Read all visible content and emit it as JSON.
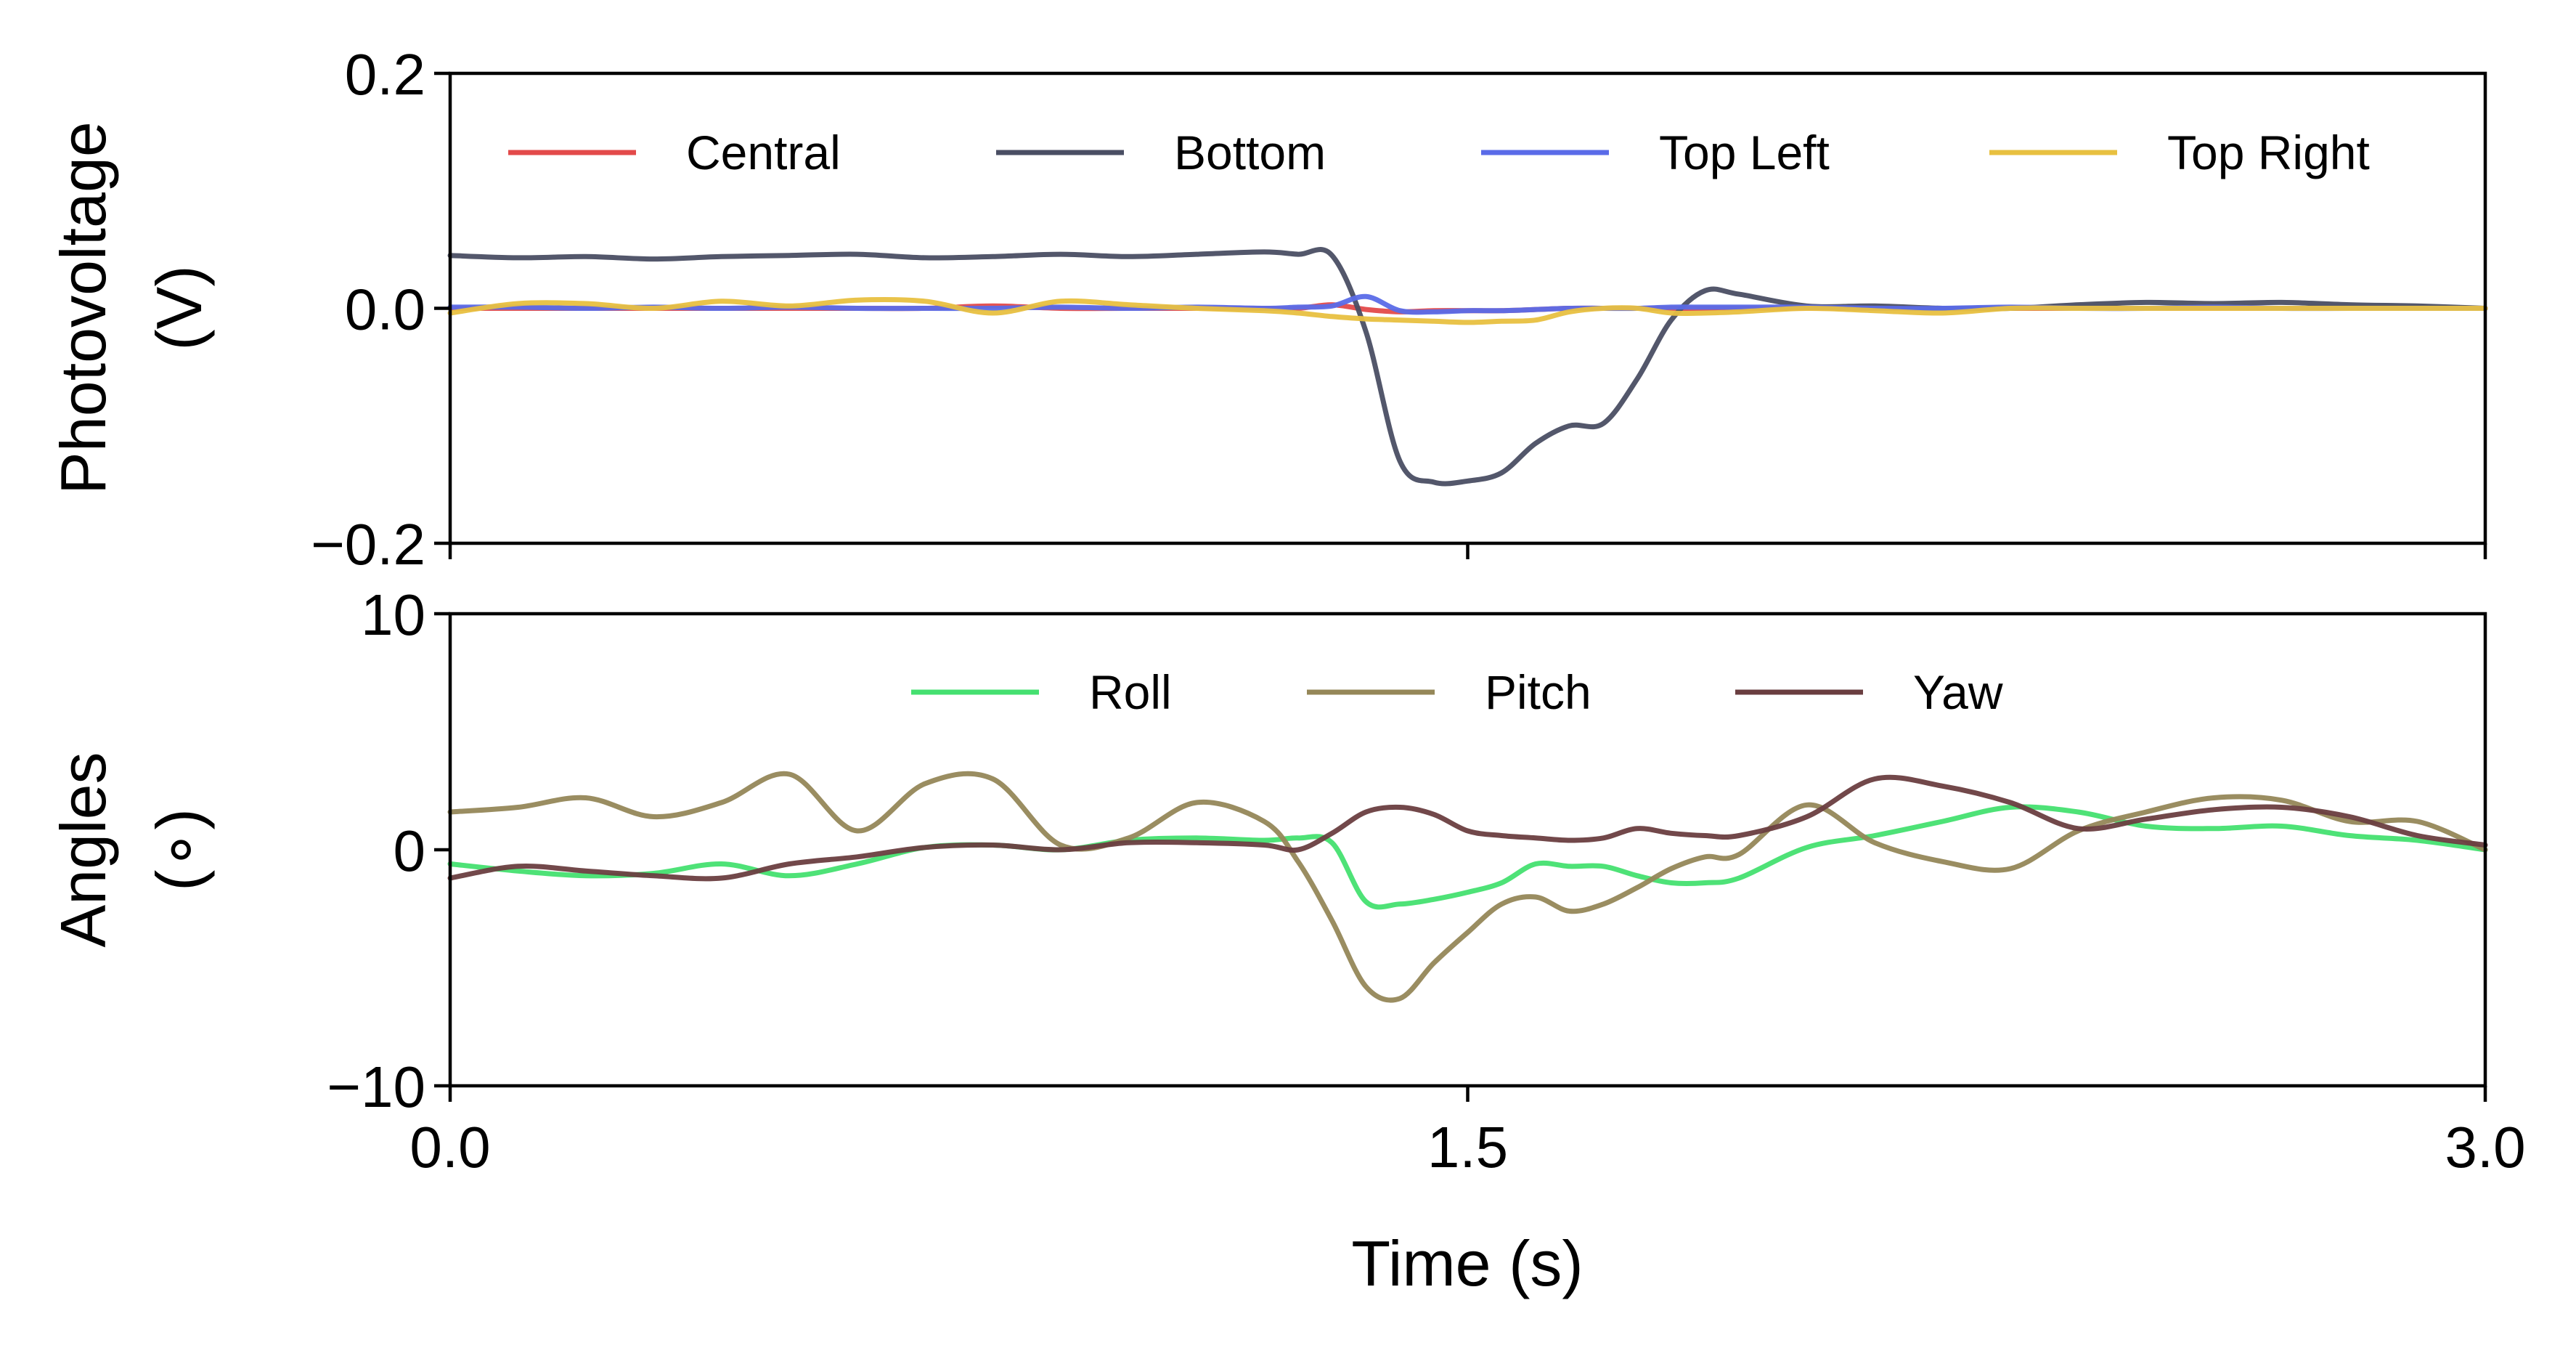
{
  "chart_data": [
    {
      "type": "line",
      "xlabel": "",
      "ylabel": [
        "Photovoltage",
        "(V)"
      ],
      "xlim": [
        0,
        3.0
      ],
      "ylim": [
        -0.2,
        0.2
      ],
      "yticks": [
        -0.2,
        0.0,
        0.2
      ],
      "ytick_labels": [
        "−0.2",
        "0.0",
        "0.2"
      ],
      "xticks": [
        0,
        1.5,
        3.0
      ],
      "grid": false,
      "legend": "top, 4 columns",
      "x": [
        0.0,
        0.1,
        0.2,
        0.3,
        0.4,
        0.5,
        0.6,
        0.7,
        0.8,
        0.9,
        1.0,
        1.1,
        1.2,
        1.25,
        1.3,
        1.35,
        1.4,
        1.45,
        1.5,
        1.55,
        1.6,
        1.65,
        1.7,
        1.75,
        1.8,
        1.85,
        1.9,
        2.0,
        2.1,
        2.2,
        2.3,
        2.4,
        2.5,
        2.6,
        2.7,
        2.8,
        2.9,
        3.0
      ],
      "series": [
        {
          "name": "Central",
          "color": "#e34a4a",
          "values": [
            0,
            0,
            0,
            0,
            0,
            0,
            0,
            0,
            0.002,
            0,
            0,
            0,
            0,
            0,
            0.003,
            -0.001,
            -0.003,
            -0.002,
            -0.002,
            -0.002,
            -0.001,
            0,
            0,
            0,
            0,
            0,
            0,
            0,
            0,
            0,
            0,
            0,
            0,
            0,
            0,
            0,
            0,
            0
          ]
        },
        {
          "name": "Bottom",
          "color": "#4a4e63",
          "values": [
            0.045,
            0.043,
            0.044,
            0.042,
            0.044,
            0.045,
            0.046,
            0.043,
            0.044,
            0.046,
            0.044,
            0.046,
            0.048,
            0.046,
            0.045,
            -0.02,
            -0.13,
            -0.148,
            -0.147,
            -0.14,
            -0.115,
            -0.1,
            -0.098,
            -0.06,
            -0.01,
            0.015,
            0.012,
            0.002,
            0.002,
            0.0,
            0.0,
            0.003,
            0.005,
            0.004,
            0.005,
            0.003,
            0.002,
            0.0
          ]
        },
        {
          "name": "Top Left",
          "color": "#5a6be8",
          "values": [
            0.001,
            0.001,
            0.0,
            0.001,
            0.0,
            0.001,
            0.0,
            0.0,
            0.0,
            0.001,
            0.0,
            0.001,
            0.0,
            0.001,
            0.002,
            0.01,
            -0.002,
            -0.003,
            -0.002,
            -0.002,
            -0.001,
            0.0,
            0.0,
            0.0,
            0.001,
            0.001,
            0.001,
            0.001,
            0.0,
            0.0,
            0.001,
            0.0,
            0.0,
            0.001,
            0.0,
            0.0,
            0.0,
            0.0
          ]
        },
        {
          "name": "Top Right",
          "color": "#e8c040",
          "values": [
            -0.004,
            0.004,
            0.004,
            0.0,
            0.006,
            0.002,
            0.007,
            0.006,
            -0.004,
            0.006,
            0.003,
            0.0,
            -0.002,
            -0.004,
            -0.007,
            -0.009,
            -0.01,
            -0.011,
            -0.012,
            -0.011,
            -0.01,
            -0.003,
            0.0,
            0.0,
            -0.004,
            -0.004,
            -0.003,
            0.0,
            -0.002,
            -0.004,
            0.0,
            0.0,
            0.0,
            0.0,
            0.0,
            0.0,
            0.0,
            0.0
          ]
        }
      ]
    },
    {
      "type": "line",
      "xlabel": "Time (s)",
      "ylabel": [
        "Angles",
        "(∘)"
      ],
      "xlim": [
        0,
        3.0
      ],
      "ylim": [
        -10,
        10
      ],
      "yticks": [
        -10,
        0,
        10
      ],
      "ytick_labels": [
        "−10",
        "0",
        "10"
      ],
      "xticks": [
        0,
        1.5,
        3.0
      ],
      "xtick_labels": [
        "0.0",
        "1.5",
        "3.0"
      ],
      "grid": false,
      "legend": "top-center, 3 columns",
      "x": [
        0.0,
        0.1,
        0.2,
        0.3,
        0.4,
        0.5,
        0.6,
        0.7,
        0.8,
        0.9,
        1.0,
        1.1,
        1.2,
        1.25,
        1.3,
        1.35,
        1.4,
        1.45,
        1.5,
        1.55,
        1.6,
        1.65,
        1.7,
        1.75,
        1.8,
        1.85,
        1.9,
        2.0,
        2.1,
        2.2,
        2.3,
        2.4,
        2.5,
        2.6,
        2.7,
        2.8,
        2.9,
        3.0
      ],
      "series": [
        {
          "name": "Roll",
          "color": "#45e070",
          "values": [
            -0.6,
            -0.9,
            -1.1,
            -1.0,
            -0.6,
            -1.1,
            -0.6,
            0.1,
            0.2,
            0.0,
            0.4,
            0.5,
            0.4,
            0.5,
            0.3,
            -2.2,
            -2.3,
            -2.1,
            -1.8,
            -1.4,
            -0.6,
            -0.7,
            -0.7,
            -1.1,
            -1.4,
            -1.4,
            -1.2,
            0.1,
            0.6,
            1.2,
            1.8,
            1.6,
            1.0,
            0.9,
            1.0,
            0.6,
            0.4,
            0.0
          ]
        },
        {
          "name": "Pitch",
          "color": "#958758",
          "values": [
            1.6,
            1.8,
            2.2,
            1.4,
            2.0,
            3.2,
            0.8,
            2.8,
            3.0,
            0.2,
            0.5,
            2.0,
            1.2,
            -0.5,
            -3.0,
            -5.8,
            -6.3,
            -4.8,
            -3.5,
            -2.3,
            -2.0,
            -2.6,
            -2.3,
            -1.6,
            -0.8,
            -0.3,
            -0.2,
            1.9,
            0.3,
            -0.5,
            -0.8,
            0.8,
            1.6,
            2.2,
            2.1,
            1.2,
            1.2,
            0.0
          ]
        },
        {
          "name": "Yaw",
          "color": "#6a3e40",
          "values": [
            -1.2,
            -0.7,
            -0.9,
            -1.1,
            -1.2,
            -0.6,
            -0.3,
            0.1,
            0.2,
            0.0,
            0.3,
            0.3,
            0.2,
            0.0,
            0.7,
            1.6,
            1.8,
            1.5,
            0.8,
            0.6,
            0.5,
            0.4,
            0.5,
            0.9,
            0.7,
            0.6,
            0.6,
            1.4,
            3.0,
            2.7,
            2.0,
            0.9,
            1.3,
            1.7,
            1.8,
            1.4,
            0.6,
            0.2
          ]
        }
      ]
    }
  ]
}
